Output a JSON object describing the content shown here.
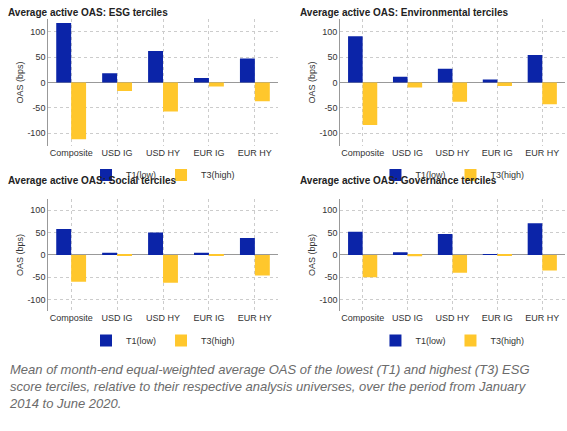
{
  "chart_data": [
    {
      "type": "bar",
      "title": "Average active OAS: ESG terciles",
      "categories": [
        "Composite",
        "USD IG",
        "USD HY",
        "EUR IG",
        "EUR HY"
      ],
      "series": [
        {
          "name": "T1(low)",
          "color": "#0b24a8",
          "values": [
            117,
            18,
            62,
            9,
            47
          ]
        },
        {
          "name": "T3(high)",
          "color": "#ffc72c",
          "values": [
            -112,
            -17,
            -57,
            -8,
            -37
          ]
        }
      ],
      "y_label": "OAS (bps)",
      "ylim": [
        -125,
        125
      ],
      "yticks": [
        -100,
        -50,
        0,
        50,
        100
      ],
      "grid": true,
      "legend": "bottom"
    },
    {
      "type": "bar",
      "title": "Average active OAS: Environmental terciles",
      "categories": [
        "Composite",
        "USD IG",
        "USD HY",
        "EUR IG",
        "EUR HY"
      ],
      "series": [
        {
          "name": "T1(low)",
          "color": "#0b24a8",
          "values": [
            91,
            11,
            27,
            6,
            54
          ]
        },
        {
          "name": "T3(high)",
          "color": "#ffc72c",
          "values": [
            -84,
            -10,
            -38,
            -7,
            -43
          ]
        }
      ],
      "y_label": "OAS (bps)",
      "ylim": [
        -125,
        125
      ],
      "yticks": [
        -100,
        -50,
        0,
        50,
        100
      ],
      "grid": true,
      "legend": "bottom"
    },
    {
      "type": "bar",
      "title": "Average active OAS: Social terciles",
      "categories": [
        "Composite",
        "USD IG",
        "USD HY",
        "EUR IG",
        "EUR HY"
      ],
      "series": [
        {
          "name": "T1(low)",
          "color": "#0b24a8",
          "values": [
            58,
            5,
            50,
            5,
            38
          ]
        },
        {
          "name": "T3(high)",
          "color": "#ffc72c",
          "values": [
            -60,
            -1,
            -62,
            -2,
            -46
          ]
        }
      ],
      "y_label": "OAS (bps)",
      "ylim": [
        -125,
        125
      ],
      "yticks": [
        -100,
        -50,
        0,
        50,
        100
      ],
      "grid": true,
      "legend": "bottom"
    },
    {
      "type": "bar",
      "title": "Average active OAS: Governance terciles",
      "categories": [
        "Composite",
        "USD IG",
        "USD HY",
        "EUR IG",
        "EUR HY"
      ],
      "series": [
        {
          "name": "T1(low)",
          "color": "#0b24a8",
          "values": [
            52,
            6,
            47,
            2,
            71
          ]
        },
        {
          "name": "T3(high)",
          "color": "#ffc72c",
          "values": [
            -50,
            -3,
            -40,
            -2,
            -35
          ]
        }
      ],
      "y_label": "OAS (bps)",
      "ylim": [
        -125,
        125
      ],
      "yticks": [
        -100,
        -50,
        0,
        50,
        100
      ],
      "grid": true,
      "legend": "bottom"
    }
  ],
  "caption": "Mean of month-end equal-weighted average OAS of the lowest (T1) and highest (T3) ESG score terciles, relative to their respective analysis universes, over the period from January 2014 to June 2020."
}
